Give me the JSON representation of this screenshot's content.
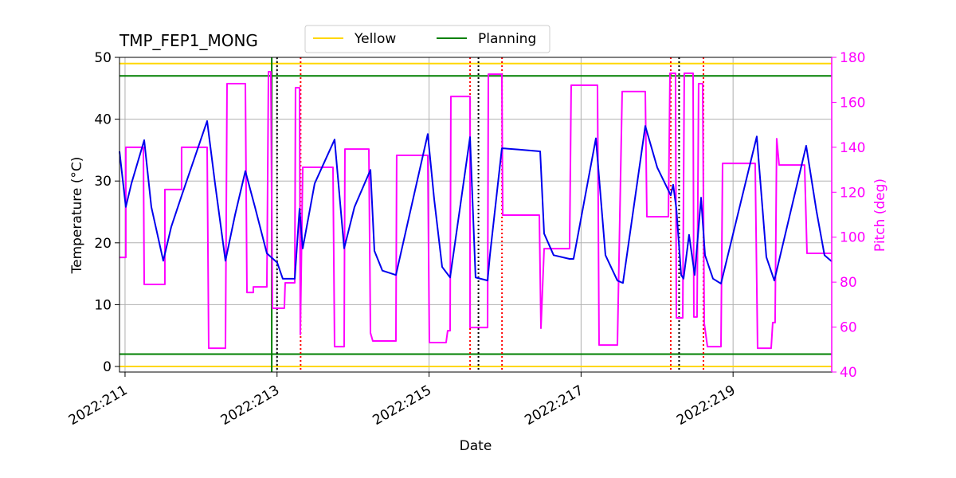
{
  "chart_data": {
    "type": "line",
    "title": "TMP_FEP1_MONG",
    "xlabel": "Date",
    "ylabel": "Temperature (°C)",
    "y2label": "Pitch (deg)",
    "y2color": "#ff00ff",
    "grid": true,
    "legend": "top",
    "xlim": [
      210.927,
      220.298
    ],
    "ylim": [
      -0.9,
      50
    ],
    "y2lim": [
      40,
      180
    ],
    "xticks": [
      {
        "value": 211,
        "label": "2022:211"
      },
      {
        "value": 213,
        "label": "2022:213"
      },
      {
        "value": 215,
        "label": "2022:215"
      },
      {
        "value": 217,
        "label": "2022:217"
      },
      {
        "value": 219,
        "label": "2022:219"
      }
    ],
    "yticks": [
      0,
      10,
      20,
      30,
      40,
      50
    ],
    "y2ticks": [
      40,
      60,
      80,
      100,
      120,
      140,
      160,
      180
    ],
    "series": [
      {
        "color": "#0000ee",
        "x": [
          210.927,
          211.01,
          211.084,
          211.252,
          211.346,
          211.503,
          211.608,
          211.744,
          212.08,
          212.184,
          212.321,
          212.447,
          212.583,
          212.709,
          212.866,
          213.002,
          213.075,
          213.233,
          213.296,
          213.338,
          213.495,
          213.757,
          213.883,
          214.019,
          214.229,
          214.281,
          214.386,
          214.564,
          214.983,
          215.067,
          215.172,
          215.277,
          215.539,
          215.612,
          215.77,
          215.801,
          215.958,
          216.168,
          216.462,
          216.514,
          216.639,
          216.849,
          216.901,
          217.195,
          217.321,
          217.478,
          217.551,
          217.845,
          218.002,
          218.18,
          218.212,
          218.254,
          218.317,
          218.348,
          218.421,
          218.495,
          218.579,
          218.631,
          218.736,
          218.841,
          219.312,
          219.438,
          219.543,
          219.962,
          220.098,
          220.203,
          220.298
        ],
        "values": [
          34.8,
          25.8,
          29.6,
          36.6,
          25.8,
          17.1,
          22.6,
          27.6,
          39.7,
          29.6,
          17.1,
          24.5,
          31.6,
          25.8,
          18.3,
          16.8,
          14.2,
          14.2,
          25.5,
          19.1,
          29.6,
          36.7,
          19.1,
          25.8,
          31.8,
          18.7,
          15.5,
          14.8,
          37.6,
          27.1,
          16.1,
          14.4,
          37.1,
          14.4,
          13.9,
          18.0,
          35.3,
          35.1,
          34.8,
          21.5,
          18.0,
          17.4,
          17.4,
          36.9,
          18.0,
          13.9,
          13.5,
          38.9,
          32.2,
          27.7,
          29.4,
          25.5,
          14.8,
          14.2,
          21.3,
          14.8,
          27.3,
          18.0,
          14.2,
          13.4,
          37.2,
          17.7,
          13.9,
          35.7,
          25.1,
          18.0,
          17.0
        ]
      },
      {
        "color": "#ff00ff",
        "axis": "y2",
        "x": [
          210.927,
          211.01,
          211.01,
          211.241,
          211.252,
          211.524,
          211.524,
          211.744,
          211.744,
          212.08,
          212.101,
          212.321,
          212.342,
          212.583,
          212.604,
          212.688,
          212.688,
          212.866,
          212.887,
          212.918,
          212.939,
          213.096,
          213.107,
          213.233,
          213.243,
          213.296,
          213.306,
          213.338,
          213.736,
          213.757,
          213.883,
          213.893,
          214.208,
          214.229,
          214.26,
          214.564,
          214.574,
          214.983,
          215.004,
          215.224,
          215.245,
          215.277,
          215.287,
          215.539,
          215.539,
          215.77,
          215.78,
          215.958,
          215.969,
          216.451,
          216.472,
          216.514,
          216.849,
          216.87,
          217.216,
          217.237,
          217.478,
          217.541,
          217.845,
          217.866,
          218.149,
          218.17,
          218.243,
          218.254,
          218.338,
          218.358,
          218.474,
          218.484,
          218.526,
          218.547,
          218.6,
          218.621,
          218.663,
          218.841,
          218.862,
          219.291,
          219.323,
          219.501,
          219.522,
          219.553,
          219.574,
          219.606,
          219.941,
          219.973,
          220.298
        ],
        "values": [
          91,
          91,
          140,
          140,
          79,
          79,
          121.2,
          121.2,
          140,
          140,
          50.6,
          50.6,
          168.3,
          168.3,
          75.4,
          75.4,
          77.9,
          77.9,
          173.6,
          173.6,
          68.4,
          68.4,
          79.7,
          79.7,
          166.5,
          166.5,
          56.7,
          131.1,
          131.1,
          51.3,
          51.3,
          139.2,
          139.2,
          57.4,
          53.8,
          53.8,
          136.4,
          136.4,
          53.1,
          53.1,
          58.4,
          58.4,
          162.6,
          162.6,
          59.8,
          59.8,
          172.5,
          172.5,
          109.8,
          109.8,
          59.5,
          94.9,
          94.9,
          167.6,
          167.6,
          52.0,
          52.0,
          164.8,
          164.8,
          109.1,
          109.1,
          172.9,
          172.9,
          64.1,
          64.1,
          172.9,
          172.9,
          64.5,
          64.5,
          168.3,
          168.3,
          61.6,
          51.3,
          51.3,
          132.8,
          132.8,
          50.6,
          50.6,
          62.0,
          62.0,
          143.8,
          132.1,
          132.1,
          92.8,
          92.8
        ]
      }
    ],
    "hlines": [
      {
        "name": "Yellow",
        "color": "#ffd700",
        "values": [
          49,
          0
        ]
      },
      {
        "name": "Planning",
        "color": "#008000",
        "values": [
          47,
          2
        ]
      }
    ],
    "vlines": [
      {
        "color": "#008000",
        "style": "solid",
        "values": [
          212.93
        ]
      },
      {
        "color": "#000000",
        "style": "dotted",
        "values": [
          213.0,
          215.65,
          218.29
        ]
      },
      {
        "color": "#ff0000",
        "style": "dotted",
        "values": [
          213.31,
          215.54,
          215.96,
          218.18,
          218.61
        ]
      }
    ]
  }
}
